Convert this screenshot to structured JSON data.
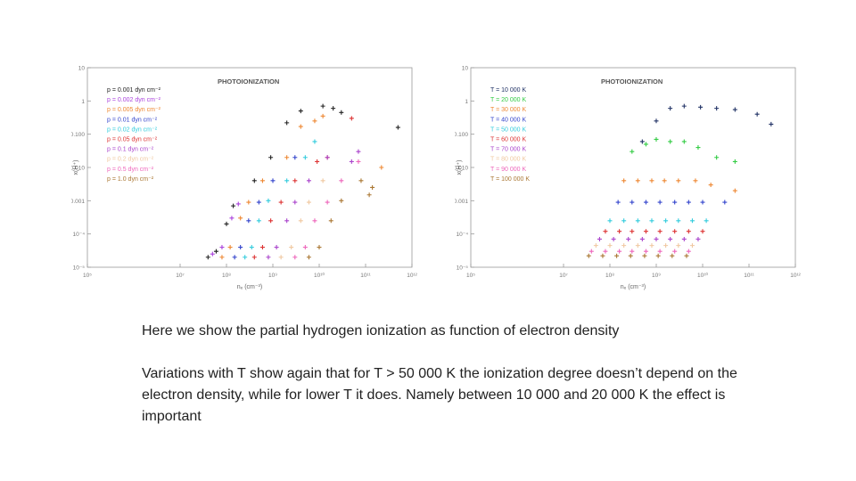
{
  "chart_data": [
    {
      "type": "scatter",
      "title": "PHOTOIONIZATION",
      "xlabel": "nₑ (cm⁻³)",
      "ylabel": "x(H⁺)",
      "x_scale": "log",
      "y_scale": "log",
      "xlim": [
        100000.0,
        1000000000000.0
      ],
      "ylim": [
        1e-05,
        10
      ],
      "x_ticks": [
        "10⁵",
        "10⁷",
        "10⁸",
        "10⁹",
        "10¹⁰",
        "10¹¹",
        "10¹²"
      ],
      "y_ticks": [
        "10",
        "1",
        "0.100",
        "0.010",
        "0.001",
        "10⁻⁴",
        "10⁻⁵"
      ],
      "legend_position": "top-left",
      "series": [
        {
          "name": "p = 0.001 dyn cm⁻²",
          "color": "#222222",
          "points": [
            [
              40000000.0,
              2e-05
            ],
            [
              60000000.0,
              3e-05
            ],
            [
              100000000.0,
              0.0002
            ],
            [
              140000000.0,
              0.0007
            ],
            [
              400000000.0,
              0.004
            ],
            [
              900000000.0,
              0.02
            ],
            [
              2000000000.0,
              0.22
            ],
            [
              4000000000.0,
              0.5
            ],
            [
              12000000000.0,
              0.7
            ],
            [
              20000000000.0,
              0.6
            ],
            [
              30000000000.0,
              0.45
            ],
            [
              500000000000.0,
              0.16
            ]
          ]
        },
        {
          "name": "p = 0.002 dyn cm⁻²",
          "color": "#aa44dd",
          "points": [
            [
              50000000.0,
              2.5e-05
            ],
            [
              80000000.0,
              4e-05
            ],
            [
              130000000.0,
              0.0003
            ],
            [
              180000000.0,
              0.0008
            ]
          ]
        },
        {
          "name": "p = 0.005 dyn cm⁻²",
          "color": "#ee8833",
          "points": [
            [
              80000000.0,
              2e-05
            ],
            [
              120000000.0,
              4e-05
            ],
            [
              200000000.0,
              0.0003
            ],
            [
              300000000.0,
              0.0009
            ],
            [
              600000000.0,
              0.004
            ],
            [
              2000000000.0,
              0.02
            ],
            [
              4000000000.0,
              0.17
            ],
            [
              8000000000.0,
              0.25
            ],
            [
              12000000000.0,
              0.35
            ],
            [
              220000000000.0,
              0.01
            ]
          ]
        },
        {
          "name": "p = 0.01 dyn cm⁻²",
          "color": "#3344cc",
          "points": [
            [
              150000000.0,
              2e-05
            ],
            [
              200000000.0,
              4e-05
            ],
            [
              300000000.0,
              0.00025
            ],
            [
              500000000.0,
              0.0009
            ],
            [
              1000000000.0,
              0.004
            ],
            [
              3000000000.0,
              0.02
            ]
          ]
        },
        {
          "name": "p = 0.02 dyn cm⁻²",
          "color": "#33ccdd",
          "points": [
            [
              250000000.0,
              2e-05
            ],
            [
              350000000.0,
              4e-05
            ],
            [
              500000000.0,
              0.00025
            ],
            [
              800000000.0,
              0.001
            ],
            [
              2000000000.0,
              0.004
            ],
            [
              5000000000.0,
              0.02
            ],
            [
              8000000000.0,
              0.06
            ]
          ]
        },
        {
          "name": "p = 0.05 dyn cm⁻²",
          "color": "#dd3333",
          "points": [
            [
              400000000.0,
              2e-05
            ],
            [
              600000000.0,
              4e-05
            ],
            [
              900000000.0,
              0.00025
            ],
            [
              1500000000.0,
              0.0009
            ],
            [
              3000000000.0,
              0.004
            ],
            [
              9000000000.0,
              0.015
            ],
            [
              15000000000.0,
              0.02
            ],
            [
              50000000000.0,
              0.3
            ]
          ]
        },
        {
          "name": "p = 0.1 dyn cm⁻²",
          "color": "#aa44cc",
          "points": [
            [
              800000000.0,
              2e-05
            ],
            [
              1200000000.0,
              4e-05
            ],
            [
              2000000000.0,
              0.00025
            ],
            [
              3000000000.0,
              0.0009
            ],
            [
              6000000000.0,
              0.004
            ],
            [
              15000000000.0,
              0.02
            ],
            [
              50000000000.0,
              0.015
            ],
            [
              70000000000.0,
              0.03
            ]
          ]
        },
        {
          "name": "p = 0.2 dyn cm⁻²",
          "color": "#f0c8a0",
          "points": [
            [
              1500000000.0,
              2e-05
            ],
            [
              2500000000.0,
              4e-05
            ],
            [
              4000000000.0,
              0.00025
            ],
            [
              6000000000.0,
              0.0009
            ],
            [
              12000000000.0,
              0.004
            ]
          ]
        },
        {
          "name": "p = 0.5 dyn cm⁻²",
          "color": "#ee66bb",
          "points": [
            [
              3000000000.0,
              2e-05
            ],
            [
              5000000000.0,
              4e-05
            ],
            [
              8000000000.0,
              0.00025
            ],
            [
              15000000000.0,
              0.0009
            ],
            [
              30000000000.0,
              0.004
            ],
            [
              70000000000.0,
              0.015
            ]
          ]
        },
        {
          "name": "p = 1.0 dyn cm⁻²",
          "color": "#aa7733",
          "points": [
            [
              6000000000.0,
              2e-05
            ],
            [
              10000000000.0,
              4e-05
            ],
            [
              18000000000.0,
              0.00025
            ],
            [
              30000000000.0,
              0.001
            ],
            [
              80000000000.0,
              0.004
            ],
            [
              120000000000.0,
              0.0015
            ],
            [
              140000000000.0,
              0.0025
            ]
          ]
        }
      ]
    },
    {
      "type": "scatter",
      "title": "PHOTOIONIZATION",
      "xlabel": "nₑ (cm⁻³)",
      "ylabel": "x(H⁺)",
      "x_scale": "log",
      "y_scale": "log",
      "xlim": [
        100000.0,
        1000000000000.0
      ],
      "ylim": [
        1e-05,
        10
      ],
      "x_ticks": [
        "10⁵",
        "10⁷",
        "10⁸",
        "10⁹",
        "10¹⁰",
        "10¹¹",
        "10¹²"
      ],
      "y_ticks": [
        "10",
        "1",
        "0.100",
        "0.010",
        "0.001",
        "10⁻⁴",
        "10⁻⁵"
      ],
      "legend_position": "top-left",
      "series": [
        {
          "name": "T = 10 000 K",
          "color": "#223366",
          "points": [
            [
              500000000.0,
              0.06
            ],
            [
              1000000000.0,
              0.25
            ],
            [
              2000000000.0,
              0.6
            ],
            [
              4000000000.0,
              0.7
            ],
            [
              9000000000.0,
              0.65
            ],
            [
              20000000000.0,
              0.6
            ],
            [
              50000000000.0,
              0.55
            ],
            [
              150000000000.0,
              0.4
            ],
            [
              300000000000.0,
              0.2
            ]
          ]
        },
        {
          "name": "T = 20 000 K",
          "color": "#33cc44",
          "points": [
            [
              300000000.0,
              0.03
            ],
            [
              600000000.0,
              0.05
            ],
            [
              1000000000.0,
              0.07
            ],
            [
              2000000000.0,
              0.06
            ],
            [
              4000000000.0,
              0.06
            ],
            [
              8000000000.0,
              0.04
            ],
            [
              20000000000.0,
              0.02
            ],
            [
              50000000000.0,
              0.015
            ]
          ]
        },
        {
          "name": "T = 30 000 K",
          "color": "#ee8833",
          "points": [
            [
              200000000.0,
              0.004
            ],
            [
              400000000.0,
              0.004
            ],
            [
              800000000.0,
              0.004
            ],
            [
              1500000000.0,
              0.004
            ],
            [
              3000000000.0,
              0.004
            ],
            [
              7000000000.0,
              0.004
            ],
            [
              15000000000.0,
              0.003
            ],
            [
              50000000000.0,
              0.002
            ]
          ]
        },
        {
          "name": "T = 40 000 K",
          "color": "#3344cc",
          "points": [
            [
              150000000.0,
              0.0009
            ],
            [
              300000000.0,
              0.0009
            ],
            [
              600000000.0,
              0.0009
            ],
            [
              1200000000.0,
              0.0009
            ],
            [
              2500000000.0,
              0.0009
            ],
            [
              5000000000.0,
              0.0009
            ],
            [
              10000000000.0,
              0.0009
            ],
            [
              30000000000.0,
              0.0009
            ]
          ]
        },
        {
          "name": "T = 50 000 K",
          "color": "#33ccdd",
          "points": [
            [
              100000000.0,
              0.00025
            ],
            [
              200000000.0,
              0.00025
            ],
            [
              400000000.0,
              0.00025
            ],
            [
              800000000.0,
              0.00025
            ],
            [
              1600000000.0,
              0.00025
            ],
            [
              3000000000.0,
              0.00025
            ],
            [
              6000000000.0,
              0.00025
            ],
            [
              12000000000.0,
              0.00025
            ]
          ]
        },
        {
          "name": "T = 60 000 K",
          "color": "#dd3333",
          "points": [
            [
              80000000.0,
              0.00012
            ],
            [
              160000000.0,
              0.00012
            ],
            [
              300000000.0,
              0.00012
            ],
            [
              600000000.0,
              0.00012
            ],
            [
              1200000000.0,
              0.00012
            ],
            [
              2500000000.0,
              0.00012
            ],
            [
              5000000000.0,
              0.00012
            ],
            [
              10000000000.0,
              0.00012
            ]
          ]
        },
        {
          "name": "T = 70 000 K",
          "color": "#aa44cc",
          "points": [
            [
              60000000.0,
              7e-05
            ],
            [
              120000000.0,
              7e-05
            ],
            [
              250000000.0,
              7e-05
            ],
            [
              500000000.0,
              7e-05
            ],
            [
              1000000000.0,
              7e-05
            ],
            [
              2000000000.0,
              7e-05
            ],
            [
              4000000000.0,
              7e-05
            ],
            [
              8000000000.0,
              7e-05
            ]
          ]
        },
        {
          "name": "T = 80 000 K",
          "color": "#f0c8a0",
          "points": [
            [
              50000000.0,
              4.5e-05
            ],
            [
              100000000.0,
              4.5e-05
            ],
            [
              200000000.0,
              4.5e-05
            ],
            [
              400000000.0,
              4.5e-05
            ],
            [
              800000000.0,
              4.5e-05
            ],
            [
              1600000000.0,
              4.5e-05
            ],
            [
              3000000000.0,
              4.5e-05
            ],
            [
              6000000000.0,
              4.5e-05
            ]
          ]
        },
        {
          "name": "T = 90 000 K",
          "color": "#ee66bb",
          "points": [
            [
              40000000.0,
              3e-05
            ],
            [
              80000000.0,
              3e-05
            ],
            [
              160000000.0,
              3e-05
            ],
            [
              300000000.0,
              3e-05
            ],
            [
              600000000.0,
              3e-05
            ],
            [
              1200000000.0,
              3e-05
            ],
            [
              2500000000.0,
              3e-05
            ],
            [
              5000000000.0,
              3e-05
            ]
          ]
        },
        {
          "name": "T = 100 000 K",
          "color": "#aa7733",
          "points": [
            [
              35000000.0,
              2.2e-05
            ],
            [
              70000000.0,
              2.2e-05
            ],
            [
              140000000.0,
              2.2e-05
            ],
            [
              280000000.0,
              2.2e-05
            ],
            [
              560000000.0,
              2.2e-05
            ],
            [
              1100000000.0,
              2.2e-05
            ],
            [
              2200000000.0,
              2.2e-05
            ],
            [
              4500000000.0,
              2.2e-05
            ]
          ]
        }
      ]
    }
  ],
  "caption": {
    "line1": "Here we show the partial hydrogen ionization as function of electron density",
    "line2": "Variations with T show again that for T > 50 000 K the ionization degree doesn’t depend on the electron density, while for lower T it does. Namely between 10 000 and 20 000 K the effect is important"
  }
}
